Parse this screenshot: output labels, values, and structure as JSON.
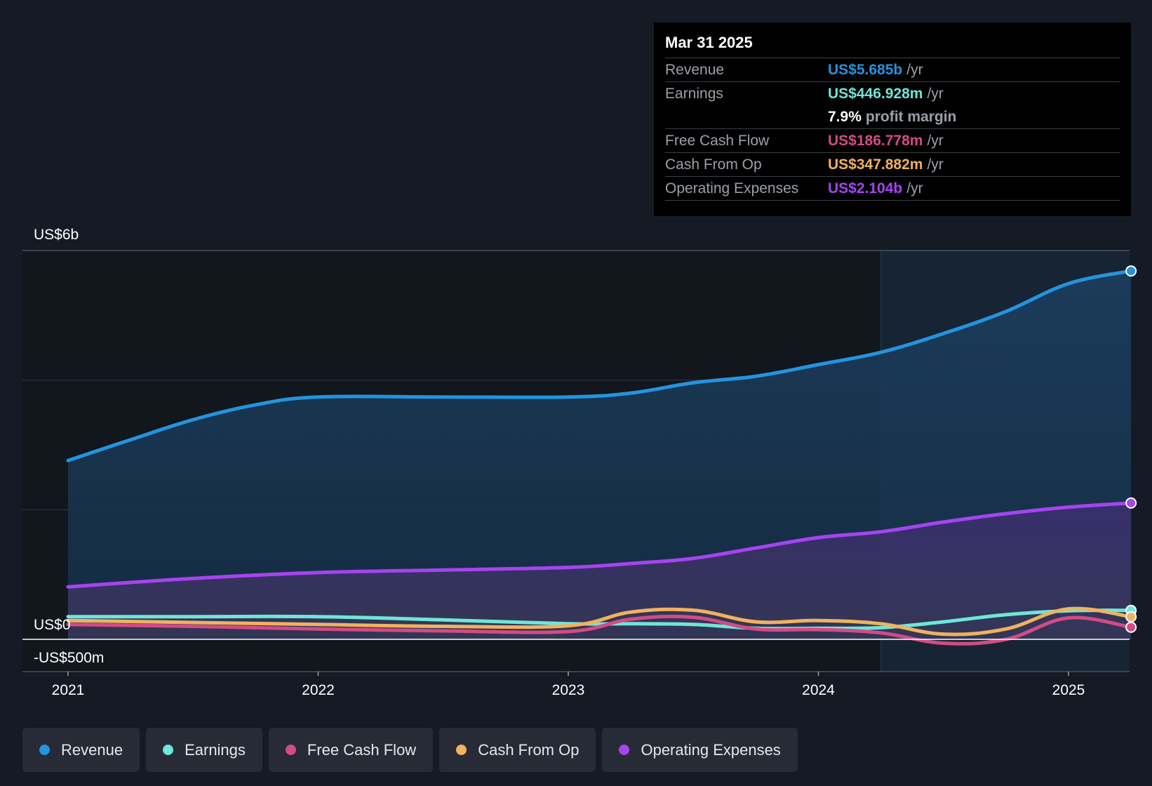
{
  "tooltip": {
    "date": "Mar 31 2025",
    "rows": [
      {
        "label": "Revenue",
        "value": "US$5.685b",
        "unit": "/yr",
        "color": "#2394df"
      },
      {
        "label": "Earnings",
        "value": "US$446.928m",
        "unit": "/yr",
        "color": "#6ee6d8"
      },
      {
        "label": "Free Cash Flow",
        "value": "US$186.778m",
        "unit": "/yr",
        "color": "#d34b84"
      },
      {
        "label": "Cash From Op",
        "value": "US$347.882m",
        "unit": "/yr",
        "color": "#f0b25f"
      },
      {
        "label": "Operating Expenses",
        "value": "US$2.104b",
        "unit": "/yr",
        "color": "#a544f0"
      }
    ],
    "margin_value": "7.9%",
    "margin_label": "profit margin"
  },
  "chart_data": {
    "type": "area",
    "y_tick_labels": [
      "US$6b",
      "US$0",
      "-US$500m"
    ],
    "x_tick_labels": [
      "2021",
      "2022",
      "2023",
      "2024",
      "2025"
    ],
    "ylim": [
      -500,
      6000
    ],
    "x_range": [
      2020.82,
      2025.25
    ],
    "highlight_start": 2024.25,
    "grid": true,
    "legend_position": "bottom-left",
    "series": [
      {
        "name": "Revenue",
        "color": "#2394df",
        "fill": true,
        "x": [
          2021.0,
          2021.25,
          2021.5,
          2021.75,
          2022.0,
          2022.5,
          2023.0,
          2023.25,
          2023.5,
          2023.75,
          2024.0,
          2024.25,
          2024.5,
          2024.75,
          2025.0,
          2025.25
        ],
        "y": [
          2760,
          3080,
          3390,
          3620,
          3740,
          3740,
          3740,
          3800,
          3960,
          4060,
          4240,
          4430,
          4720,
          5060,
          5490,
          5685
        ]
      },
      {
        "name": "Operating Expenses",
        "color": "#a544f0",
        "fill": true,
        "x": [
          2021.0,
          2021.5,
          2022.0,
          2022.5,
          2023.0,
          2023.25,
          2023.5,
          2023.75,
          2024.0,
          2024.25,
          2024.5,
          2024.75,
          2025.0,
          2025.25
        ],
        "y": [
          810,
          940,
          1030,
          1070,
          1110,
          1170,
          1250,
          1410,
          1570,
          1660,
          1810,
          1940,
          2040,
          2104
        ]
      },
      {
        "name": "Earnings",
        "color": "#6ee6d8",
        "fill": false,
        "x": [
          2021.0,
          2021.5,
          2022.0,
          2022.5,
          2023.0,
          2023.25,
          2023.5,
          2023.75,
          2024.0,
          2024.25,
          2024.5,
          2024.75,
          2025.0,
          2025.25
        ],
        "y": [
          350,
          350,
          350,
          300,
          240,
          240,
          230,
          170,
          170,
          180,
          270,
          380,
          440,
          447
        ]
      },
      {
        "name": "Free Cash Flow",
        "color": "#d34b84",
        "fill": false,
        "x": [
          2021.0,
          2021.5,
          2022.0,
          2022.5,
          2023.0,
          2023.25,
          2023.5,
          2023.75,
          2024.0,
          2024.25,
          2024.5,
          2024.75,
          2025.0,
          2025.25
        ],
        "y": [
          230,
          200,
          160,
          130,
          120,
          310,
          340,
          160,
          150,
          100,
          -60,
          0,
          330,
          187
        ]
      },
      {
        "name": "Cash From Op",
        "color": "#f0b25f",
        "fill": false,
        "x": [
          2021.0,
          2021.5,
          2022.0,
          2022.5,
          2023.0,
          2023.25,
          2023.5,
          2023.75,
          2024.0,
          2024.25,
          2024.5,
          2024.75,
          2025.0,
          2025.25
        ],
        "y": [
          290,
          260,
          230,
          200,
          210,
          420,
          450,
          270,
          290,
          240,
          80,
          160,
          470,
          348
        ]
      }
    ]
  }
}
